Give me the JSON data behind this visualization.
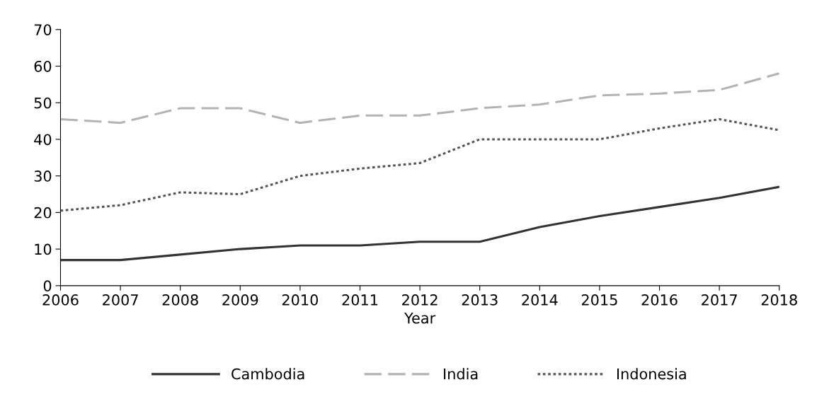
{
  "chart_data": {
    "type": "line",
    "xlabel": "Year",
    "categories": [
      "2006",
      "2007",
      "2008",
      "2009",
      "2010",
      "2011",
      "2012",
      "2013",
      "2014",
      "2015",
      "2016",
      "2017",
      "2018"
    ],
    "series": [
      {
        "name": "Cambodia",
        "color": "#333333",
        "line_style": "solid",
        "values": [
          7,
          7,
          8.5,
          10,
          11,
          11,
          12,
          12,
          16,
          19,
          21.5,
          24,
          27
        ]
      },
      {
        "name": "India",
        "color": "#b3b3b3",
        "line_style": "dashed",
        "values": [
          45.5,
          44.5,
          48.5,
          48.5,
          44.5,
          46.5,
          46.5,
          48.5,
          49.5,
          52,
          52.5,
          53.5,
          58
        ]
      },
      {
        "name": "Indonesia",
        "color": "#555555",
        "line_style": "dotted",
        "values": [
          20.5,
          22,
          25.5,
          25,
          30,
          32,
          33.5,
          40,
          40,
          40,
          43,
          45.5,
          42.5
        ]
      }
    ],
    "ylim": [
      0,
      70
    ],
    "yticks": [
      0,
      10,
      20,
      30,
      40,
      50,
      60,
      70
    ],
    "grid": false,
    "legend": "bottom",
    "marker": "none"
  }
}
